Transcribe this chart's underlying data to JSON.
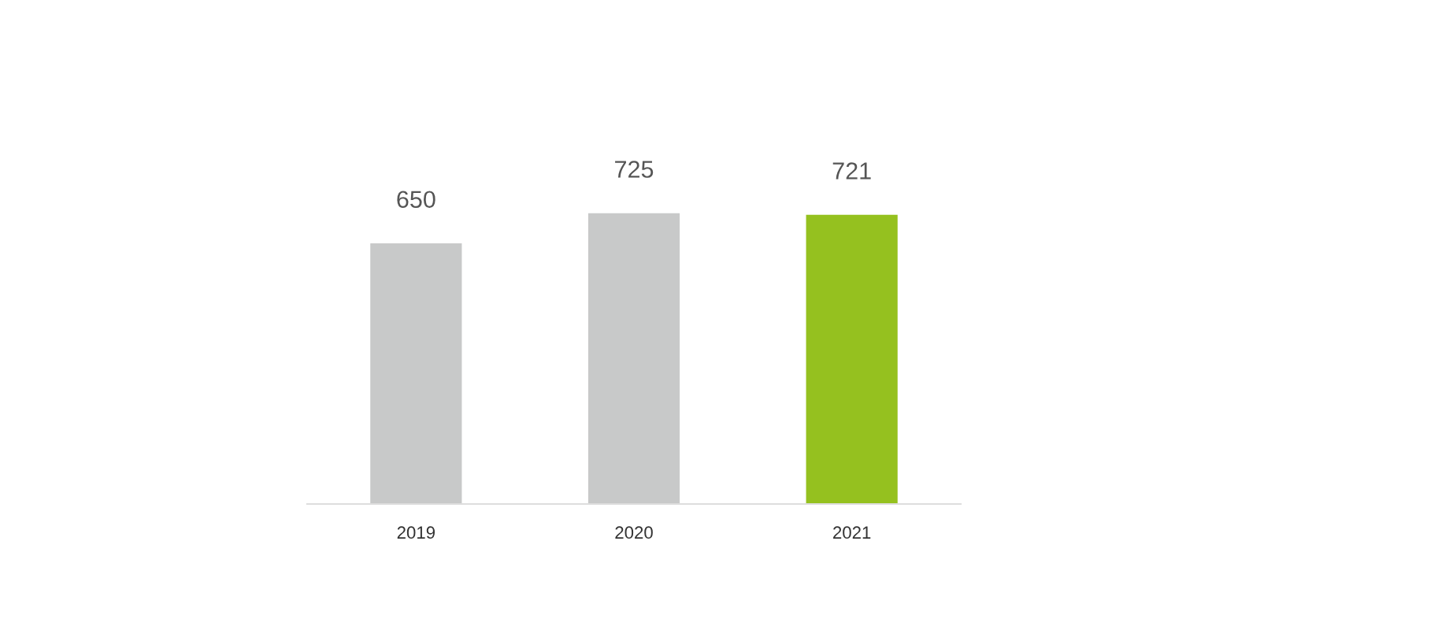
{
  "chart_data": {
    "type": "bar",
    "categories": [
      "2019",
      "2020",
      "2021"
    ],
    "values": [
      650,
      725,
      721
    ],
    "colors": [
      "#c8c9c9",
      "#c8c9c9",
      "#95c11f"
    ],
    "data_labels": true,
    "grid": false,
    "legend": false
  }
}
